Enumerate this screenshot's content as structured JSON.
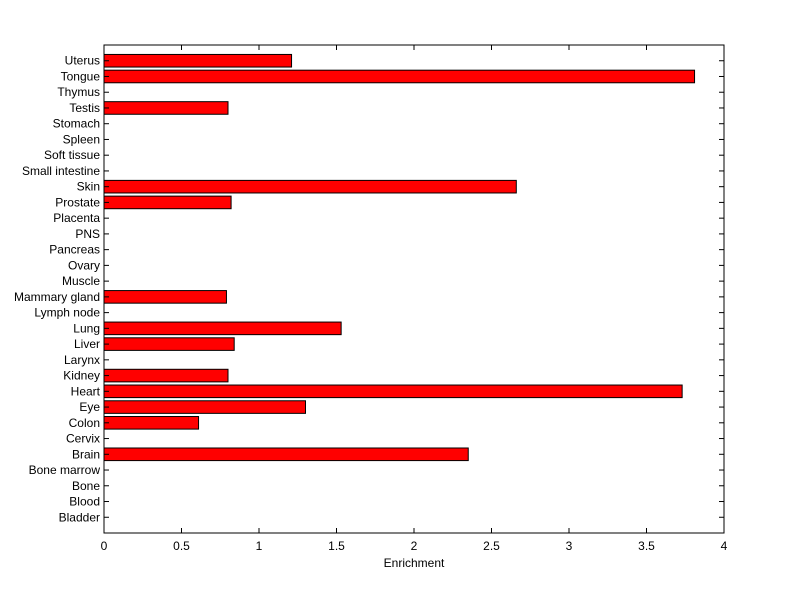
{
  "chart_data": {
    "type": "bar",
    "orientation": "horizontal",
    "title": "",
    "xlabel": "Enrichment",
    "ylabel": "",
    "xlim": [
      0,
      4
    ],
    "xticks": [
      0,
      0.5,
      1,
      1.5,
      2,
      2.5,
      3,
      3.5,
      4
    ],
    "xtick_labels": [
      "0",
      "0.5",
      "1",
      "1.5",
      "2",
      "2.5",
      "3",
      "3.5",
      "4"
    ],
    "grid": false,
    "legend": "none",
    "bar_color": "#ff0000",
    "bar_edge_color": "#000000",
    "categories": [
      "Uterus",
      "Tongue",
      "Thymus",
      "Testis",
      "Stomach",
      "Spleen",
      "Soft tissue",
      "Small intestine",
      "Skin",
      "Prostate",
      "Placenta",
      "PNS",
      "Pancreas",
      "Ovary",
      "Muscle",
      "Mammary gland",
      "Lymph node",
      "Lung",
      "Liver",
      "Larynx",
      "Kidney",
      "Heart",
      "Eye",
      "Colon",
      "Cervix",
      "Brain",
      "Bone marrow",
      "Bone",
      "Blood",
      "Bladder"
    ],
    "values": [
      1.21,
      3.81,
      0,
      0.8,
      0,
      0,
      0,
      0,
      2.66,
      0.82,
      0,
      0,
      0,
      0,
      0,
      0.79,
      0,
      1.53,
      0.84,
      0,
      0.8,
      3.73,
      1.3,
      0.61,
      0,
      2.35,
      0,
      0,
      0,
      0
    ]
  }
}
